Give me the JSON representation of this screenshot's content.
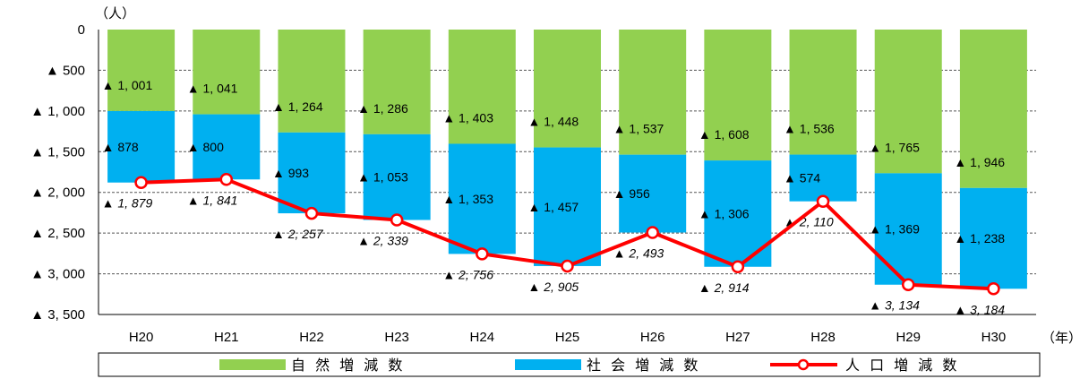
{
  "chart_data": {
    "type": "bar",
    "stacked": true,
    "y_unit_label": "（人）",
    "x_unit_label": "（年）",
    "y_ticks": [
      "0",
      "▲ 500",
      "▲ 1, 000",
      "▲ 1, 500",
      "▲ 2, 000",
      "▲ 2, 500",
      "▲ 3, 000",
      "▲ 3, 500"
    ],
    "ylim": [
      -3500,
      0
    ],
    "grid": true,
    "legend_position": "bottom",
    "categories": [
      "H20",
      "H21",
      "H22",
      "H23",
      "H24",
      "H25",
      "H26",
      "H27",
      "H28",
      "H29",
      "H30"
    ],
    "series": [
      {
        "name": "自 然 増 減 数",
        "kind": "bar",
        "color": "#92d050",
        "values": [
          -1001,
          -1041,
          -1264,
          -1286,
          -1403,
          -1448,
          -1537,
          -1608,
          -1536,
          -1765,
          -1946
        ],
        "labels": [
          "▲ 1, 001",
          "▲ 1, 041",
          "▲ 1, 264",
          "▲ 1, 286",
          "▲ 1, 403",
          "▲ 1, 448",
          "▲ 1, 537",
          "▲ 1, 608",
          "▲ 1, 536",
          "▲ 1, 765",
          "▲ 1, 946"
        ]
      },
      {
        "name": "社 会 増 減 数",
        "kind": "bar",
        "color": "#00b0f0",
        "values": [
          -878,
          -800,
          -993,
          -1053,
          -1353,
          -1457,
          -956,
          -1306,
          -574,
          -1369,
          -1238
        ],
        "labels": [
          "▲ 878",
          "▲ 800",
          "▲ 993",
          "▲ 1, 053",
          "▲ 1, 353",
          "▲ 1, 457",
          "▲ 956",
          "▲ 1, 306",
          "▲ 574",
          "▲ 1, 369",
          "▲ 1, 238"
        ]
      },
      {
        "name": "人 口 増 減 数",
        "kind": "line",
        "color": "#ff0000",
        "values": [
          -1879,
          -1841,
          -2257,
          -2339,
          -2756,
          -2905,
          -2493,
          -2914,
          -2110,
          -3134,
          -3184
        ],
        "labels": [
          "▲ 1, 879",
          "▲ 1, 841",
          "▲ 2, 257",
          "▲ 2, 339",
          "▲ 2, 756",
          "▲ 2, 905",
          "▲ 2, 493",
          "▲ 2, 914",
          "▲ 2, 110",
          "▲ 3, 134",
          "▲ 3, 184"
        ]
      }
    ]
  }
}
